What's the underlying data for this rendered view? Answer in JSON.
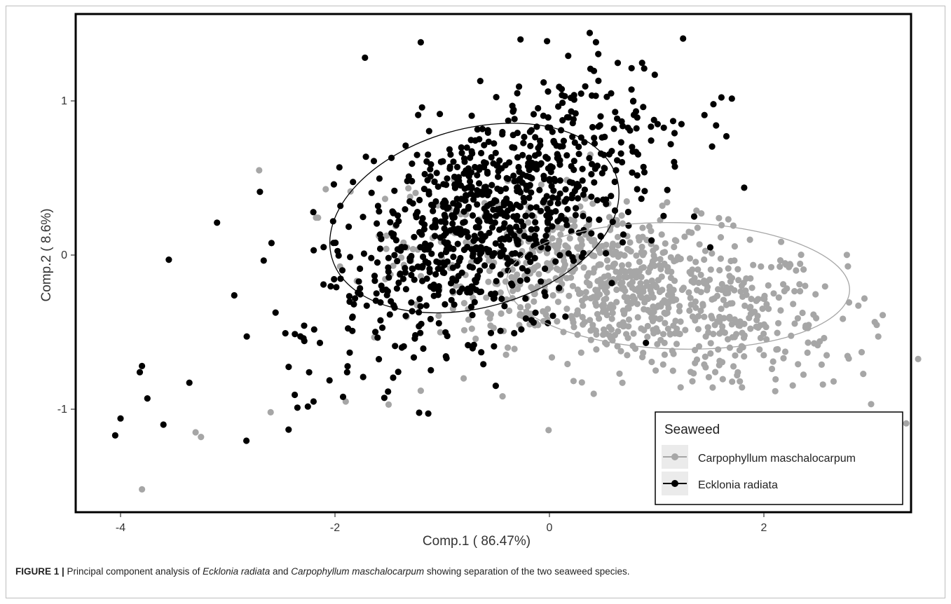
{
  "chart_data": {
    "type": "scatter",
    "xlabel": "Comp.1 ( 86.47%)",
    "ylabel": "Comp.2 ( 8.6%)",
    "xlim": [
      -4.3,
      3.55
    ],
    "ylim": [
      -1.66,
      1.45
    ],
    "x_ticks": [
      -4,
      -2,
      0,
      2
    ],
    "y_ticks": [
      -1,
      0,
      1
    ],
    "grid": false,
    "legend": {
      "title": "Seaweed",
      "position": "bottom-right"
    },
    "series": [
      {
        "name": "Carpophyllum maschalocarpum",
        "color": "#a6a6a6",
        "n_points": 900,
        "cloud": {
          "center": [
            0.7,
            -0.22
          ],
          "spread": [
            1.0,
            0.25
          ],
          "rotation_deg": -8
        },
        "sample_points": [
          [
            -3.8,
            -1.52
          ],
          [
            -3.3,
            -1.15
          ],
          [
            -3.25,
            -1.18
          ],
          [
            -2.6,
            -1.02
          ],
          [
            -1.9,
            -0.95
          ],
          [
            -1.5,
            -0.97
          ],
          [
            -1.2,
            -0.88
          ],
          [
            2.65,
            -0.82
          ],
          [
            2.55,
            -0.84
          ],
          [
            1.75,
            -0.78
          ],
          [
            -0.8,
            -0.8
          ],
          [
            1.3,
            0.15
          ],
          [
            2.3,
            -0.1
          ]
        ],
        "ellipse": {
          "center": [
            1.2,
            -0.2
          ],
          "semi_axes": [
            1.6,
            0.41
          ],
          "rotation_deg": -1.5,
          "color": "#a6a6a6"
        }
      },
      {
        "name": "Ecklonia radiata",
        "color": "#000000",
        "n_points": 900,
        "cloud": {
          "center": [
            -0.55,
            0.25
          ],
          "spread": [
            0.8,
            0.33
          ],
          "rotation_deg": 22
        },
        "sample_points": [
          [
            -4.05,
            -1.17
          ],
          [
            -4.0,
            -1.06
          ],
          [
            -3.8,
            -0.72
          ],
          [
            -3.82,
            -0.76
          ],
          [
            -3.75,
            -0.93
          ],
          [
            -3.6,
            -1.1
          ],
          [
            -3.55,
            -0.03
          ],
          [
            -3.1,
            0.21
          ],
          [
            -2.7,
            0.41
          ],
          [
            -2.35,
            -0.99
          ],
          [
            -2.2,
            -0.95
          ],
          [
            -1.2,
            1.38
          ],
          [
            -1.72,
            1.28
          ],
          [
            -0.3,
            1.05
          ],
          [
            0.2,
            1.02
          ],
          [
            0.9,
            -0.57
          ],
          [
            1.35,
            0.25
          ],
          [
            1.5,
            0.05
          ]
        ],
        "ellipse": {
          "center": [
            -0.7,
            0.24
          ],
          "semi_axes": [
            1.38,
            0.58
          ],
          "rotation_deg": 15.5,
          "color": "#000000"
        }
      }
    ]
  },
  "caption": {
    "label": "FIGURE 1 |",
    "text_1": " Principal component analysis of ",
    "species_1": "Ecklonia radiata",
    "text_2": " and ",
    "species_2": "Carpophyllum maschalocarpum",
    "text_3": " showing separation of the two seaweed species."
  }
}
